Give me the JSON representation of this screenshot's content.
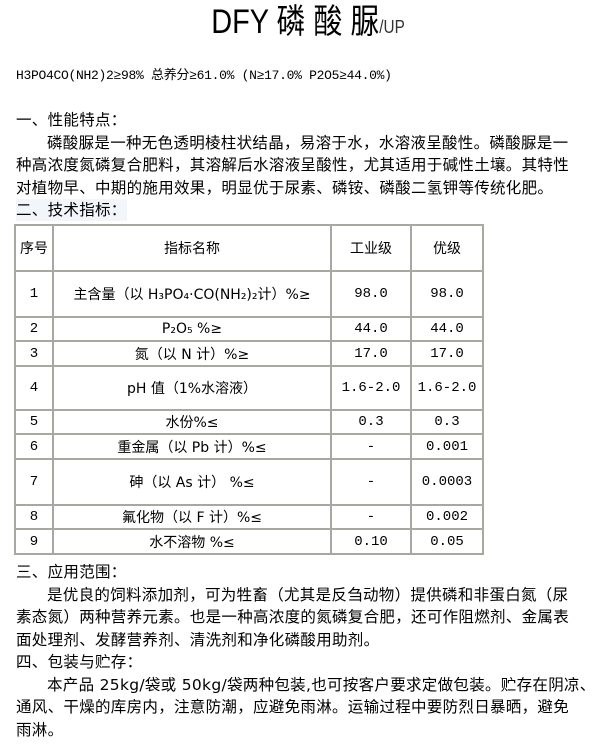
{
  "title": {
    "main": "DFY 磷 酸 脲",
    "suffix": "/UP"
  },
  "formula": "H3PO4CO(NH2)2≥98%  总养分≥61.0%   (N≥17.0%   P2O5≥44.0%)",
  "sections": [
    {
      "heading": "一、性能特点：",
      "lines": [
        "磷酸脲是一种无色透明棱柱状结晶，易溶于水，水溶液呈酸性。磷酸脲是一",
        "种高浓度氮磷复合肥料，其溶解后水溶液呈酸性，尤其适用于碱性土壤。其特性",
        "对植物早、中期的施用效果，明显优于尿素、磷铵、磷酸二氢钾等传统化肥。"
      ]
    },
    {
      "heading": "二、技术指标："
    },
    {
      "heading": "三、应用范围：",
      "lines": [
        "是优良的饲料添加剂，可为牲畜（尤其是反刍动物）提供磷和非蛋白氮（尿",
        "素态氮）两种营养元素。也是一种高浓度的氮磷复合肥，还可作阻燃剂、金属表",
        "面处理剂、发酵营养剂、清洗剂和净化磷酸用助剂。"
      ]
    },
    {
      "heading": "四、包装与贮存：",
      "lines": [
        "本产品 25kg/袋或 50kg/袋两种包装,也可按客户要求定做包装。贮存在阴凉、",
        "通风、干燥的库房内，注意防潮，应避免雨淋。运输过程中要防烈日暴晒，避免",
        "雨淋。"
      ]
    }
  ],
  "table": {
    "headers": [
      "序号",
      "指标名称",
      "工业级",
      "优级"
    ],
    "rows": [
      [
        "1",
        "主含量（以 H₃PO₄·CO(NH₂)₂计）%≥",
        "98.0",
        "98.0"
      ],
      [
        "2",
        "P₂O₅  %≥",
        "44.0",
        "44.0"
      ],
      [
        "3",
        "氮（以 N 计）%≥",
        "17.0",
        "17.0"
      ],
      [
        "4",
        "pH 值（1%水溶液）",
        "1.6-2.0",
        "1.6-2.0"
      ],
      [
        "5",
        "水份%≤",
        "0.3",
        "0.3"
      ],
      [
        "6",
        "重金属（以 Pb 计）%≤",
        "-",
        "0.001"
      ],
      [
        "7",
        "砷（以 As 计）  %≤",
        "-",
        "0.0003"
      ],
      [
        "8",
        "氟化物（以 F 计）%≤",
        "-",
        "0.002"
      ],
      [
        "9",
        "水不溶物  %≤",
        "0.10",
        "0.05"
      ]
    ]
  }
}
